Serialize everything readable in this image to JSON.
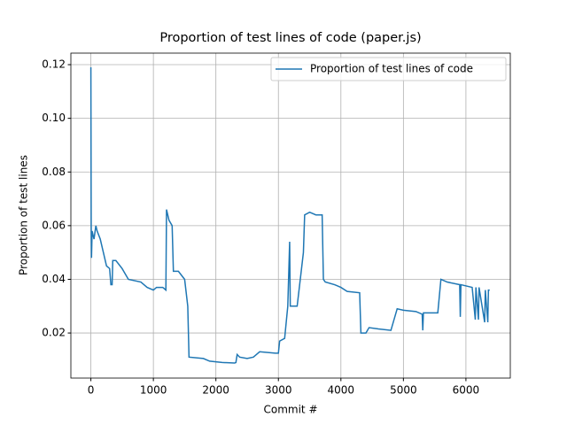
{
  "chart_data": {
    "type": "line",
    "title": "Proportion of test lines of code (paper.js)",
    "xlabel": "Commit #",
    "ylabel": "Proportion of test lines",
    "x": [
      0,
      5,
      10,
      20,
      50,
      80,
      100,
      150,
      200,
      250,
      300,
      320,
      340,
      350,
      400,
      500,
      600,
      800,
      900,
      1000,
      1050,
      1150,
      1200,
      1210,
      1250,
      1300,
      1320,
      1400,
      1500,
      1550,
      1570,
      1800,
      1900,
      2100,
      2300,
      2320,
      2340,
      2380,
      2500,
      2600,
      2700,
      2950,
      3000,
      3020,
      3100,
      3150,
      3180,
      3190,
      3300,
      3350,
      3400,
      3420,
      3500,
      3600,
      3700,
      3720,
      3750,
      3900,
      4000,
      4100,
      4300,
      4320,
      4400,
      4450,
      4600,
      4800,
      4850,
      4900,
      5000,
      5200,
      5300,
      5310,
      5320,
      5550,
      5600,
      5700,
      5900,
      5910,
      5920,
      6100,
      6150,
      6160,
      6200,
      6210,
      6300,
      6310,
      6350,
      6360,
      6380
    ],
    "series": [
      {
        "name": "Proportion of test lines of code",
        "color": "#1f77b4",
        "values": [
          0.119,
          0.06,
          0.048,
          0.058,
          0.055,
          0.06,
          0.058,
          0.055,
          0.05,
          0.045,
          0.044,
          0.038,
          0.038,
          0.047,
          0.047,
          0.044,
          0.04,
          0.039,
          0.037,
          0.036,
          0.037,
          0.037,
          0.036,
          0.066,
          0.062,
          0.06,
          0.043,
          0.043,
          0.04,
          0.03,
          0.011,
          0.0105,
          0.0095,
          0.009,
          0.0088,
          0.009,
          0.012,
          0.011,
          0.0105,
          0.011,
          0.013,
          0.0125,
          0.0125,
          0.017,
          0.018,
          0.03,
          0.054,
          0.03,
          0.03,
          0.04,
          0.05,
          0.064,
          0.065,
          0.064,
          0.064,
          0.04,
          0.039,
          0.038,
          0.037,
          0.0355,
          0.035,
          0.02,
          0.02,
          0.022,
          0.0215,
          0.021,
          0.025,
          0.029,
          0.0285,
          0.028,
          0.027,
          0.021,
          0.0275,
          0.0275,
          0.04,
          0.039,
          0.038,
          0.026,
          0.038,
          0.037,
          0.025,
          0.037,
          0.025,
          0.037,
          0.024,
          0.036,
          0.024,
          0.036,
          0.036
        ]
      }
    ],
    "xlim": [
      -320,
      6710
    ],
    "ylim": [
      0.0032,
      0.1243
    ],
    "xticks": [
      0,
      1000,
      2000,
      3000,
      4000,
      5000,
      6000
    ],
    "yticks": [
      0.02,
      0.04,
      0.06,
      0.08,
      {
        "value": 0.1,
        "label": "0.10"
      },
      0.12
    ],
    "grid": true,
    "legend": "upper-right"
  }
}
